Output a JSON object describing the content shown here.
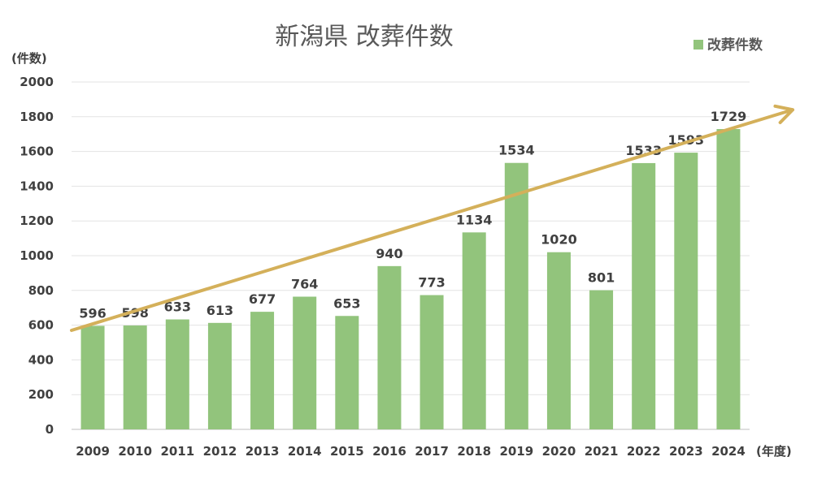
{
  "chart_data": {
    "type": "bar",
    "title": "新潟県 改葬件数",
    "ylabel": "(件数)",
    "xlabel": "(年度)",
    "ylim": [
      0,
      2000
    ],
    "yticks": [
      0,
      200,
      400,
      600,
      800,
      1000,
      1200,
      1400,
      1600,
      1800,
      2000
    ],
    "grid": true,
    "legend": "top-right",
    "categories": [
      "2009",
      "2010",
      "2011",
      "2012",
      "2013",
      "2014",
      "2015",
      "2016",
      "2017",
      "2018",
      "2019",
      "2020",
      "2021",
      "2022",
      "2023",
      "2024"
    ],
    "series": [
      {
        "name": "改葬件数",
        "values": [
          596,
          598,
          633,
          613,
          677,
          764,
          653,
          940,
          773,
          1134,
          1534,
          1020,
          801,
          1533,
          1593,
          1729
        ]
      }
    ],
    "trend_arrow": {
      "start_value": 570,
      "end_value": 1840
    },
    "colors": {
      "bar": "#92c47c",
      "trend": "#d4b05a",
      "grid": "#e3e3e3",
      "text": "#404040",
      "title": "#595959"
    }
  }
}
